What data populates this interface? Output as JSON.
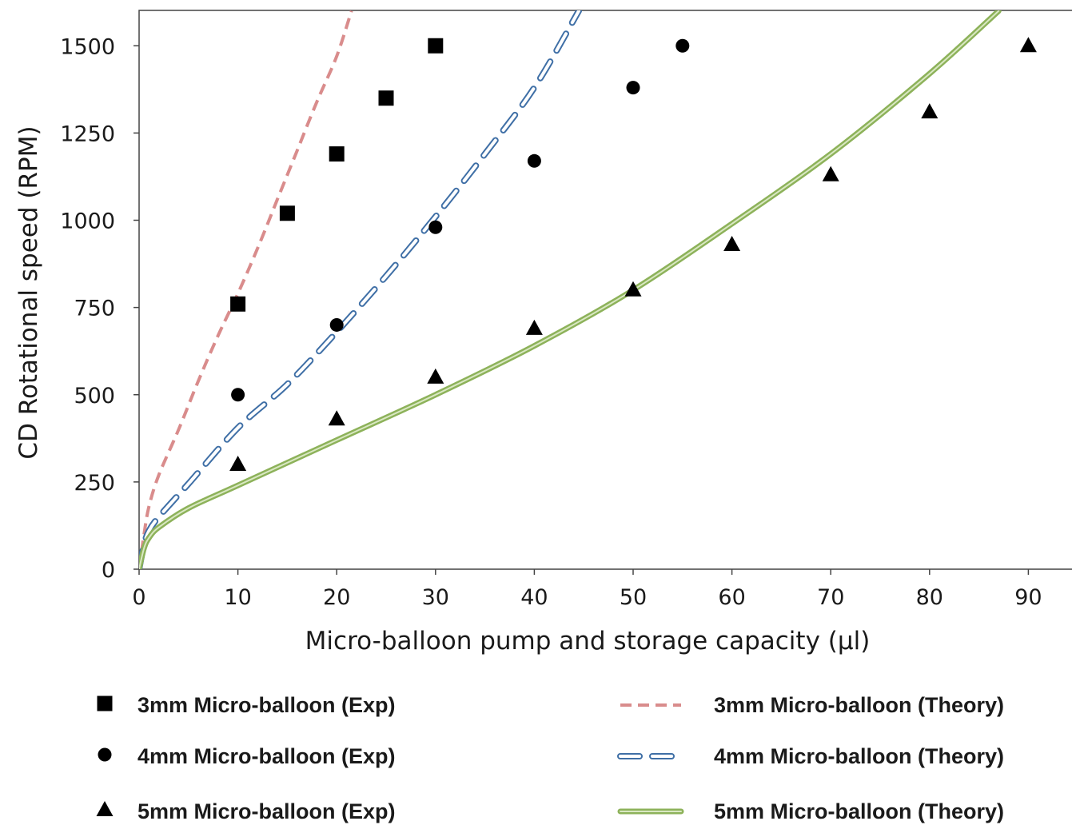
{
  "chart_data": {
    "type": "scatter",
    "title": "",
    "xlabel": "Micro-balloon pump and storage capacity (µl)",
    "ylabel": "CD Rotational speed (RPM)",
    "xlim": [
      0,
      95
    ],
    "ylim": [
      0,
      1600
    ],
    "xticks": [
      0,
      10,
      20,
      30,
      40,
      50,
      60,
      70,
      80,
      90
    ],
    "yticks": [
      0,
      250,
      500,
      750,
      1000,
      1250,
      1500
    ],
    "grid": false,
    "legend_position": "bottom",
    "series": [
      {
        "name": "3mm Micro-balloon (Exp)",
        "kind": "markers",
        "marker": "square",
        "color": "#000000",
        "points": [
          [
            10,
            760
          ],
          [
            15,
            1020
          ],
          [
            20,
            1190
          ],
          [
            25,
            1350
          ],
          [
            30,
            1500
          ]
        ]
      },
      {
        "name": "4mm Micro-balloon (Exp)",
        "kind": "markers",
        "marker": "circle",
        "color": "#000000",
        "points": [
          [
            10,
            500
          ],
          [
            20,
            700
          ],
          [
            30,
            980
          ],
          [
            40,
            1170
          ],
          [
            50,
            1380
          ],
          [
            55,
            1500
          ]
        ]
      },
      {
        "name": "5mm Micro-balloon (Exp)",
        "kind": "markers",
        "marker": "triangle",
        "color": "#000000",
        "points": [
          [
            10,
            300
          ],
          [
            20,
            430
          ],
          [
            30,
            550
          ],
          [
            40,
            690
          ],
          [
            50,
            800
          ],
          [
            60,
            930
          ],
          [
            70,
            1130
          ],
          [
            80,
            1310
          ],
          [
            90,
            1500
          ]
        ]
      },
      {
        "name": "3mm Micro-balloon (Theory)",
        "kind": "line",
        "style": "dashed",
        "color": "#d98c8c",
        "points": [
          [
            0,
            0
          ],
          [
            0.5,
            100
          ],
          [
            1,
            180
          ],
          [
            2,
            270
          ],
          [
            4,
            400
          ],
          [
            6,
            540
          ],
          [
            8,
            670
          ],
          [
            10,
            790
          ],
          [
            12,
            920
          ],
          [
            14,
            1060
          ],
          [
            16,
            1200
          ],
          [
            18,
            1340
          ],
          [
            20,
            1470
          ],
          [
            21.5,
            1600
          ]
        ]
      },
      {
        "name": "4mm Micro-balloon (Theory)",
        "kind": "line",
        "style": "long-dash-outlined",
        "color": "#3f6fa6",
        "points": [
          [
            0,
            0
          ],
          [
            0.5,
            70
          ],
          [
            1,
            110
          ],
          [
            2,
            150
          ],
          [
            5,
            245
          ],
          [
            10,
            405
          ],
          [
            15,
            530
          ],
          [
            20,
            680
          ],
          [
            25,
            840
          ],
          [
            30,
            1010
          ],
          [
            35,
            1190
          ],
          [
            40,
            1380
          ],
          [
            44.5,
            1600
          ]
        ]
      },
      {
        "name": "5mm Micro-balloon (Theory)",
        "kind": "line",
        "style": "solid-double",
        "color": "#8db25a",
        "points": [
          [
            0,
            0
          ],
          [
            0.5,
            60
          ],
          [
            1,
            90
          ],
          [
            2,
            120
          ],
          [
            5,
            175
          ],
          [
            10,
            240
          ],
          [
            20,
            370
          ],
          [
            30,
            500
          ],
          [
            40,
            640
          ],
          [
            50,
            800
          ],
          [
            60,
            990
          ],
          [
            70,
            1190
          ],
          [
            80,
            1420
          ],
          [
            87,
            1600
          ]
        ]
      }
    ]
  }
}
